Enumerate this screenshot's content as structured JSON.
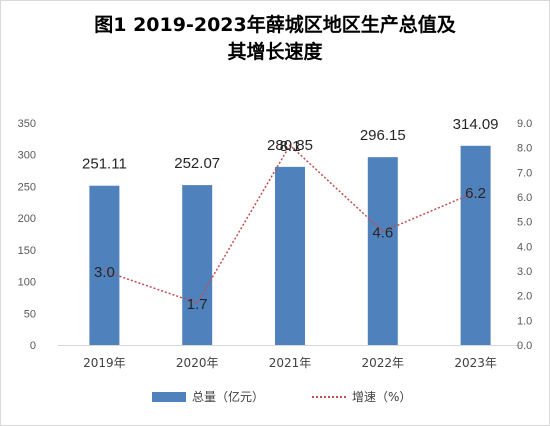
{
  "title": {
    "line1": "图1   2019-2023年薛城区地区生产总值及",
    "line2": "其增长速度"
  },
  "chart_data": {
    "type": "bar",
    "categories": [
      "2019年",
      "2020年",
      "2021年",
      "2022年",
      "2023年"
    ],
    "series": [
      {
        "name": "总量（亿元）",
        "type": "bar",
        "axis": "left",
        "color": "#4f81bd",
        "values": [
          251.11,
          252.07,
          280.85,
          296.15,
          314.09
        ]
      },
      {
        "name": "增速（%）",
        "type": "line",
        "axis": "right",
        "color": "#c0504d",
        "style": "dotted",
        "values": [
          3.0,
          1.7,
          8.1,
          4.6,
          6.2
        ]
      }
    ],
    "data_labels": {
      "bar": [
        "251.11",
        "252.07",
        "280.85",
        "296.15",
        "314.09"
      ],
      "line": [
        "3.0",
        "1.7",
        "8.1",
        "4.6",
        "6.2"
      ]
    },
    "y_left": {
      "min": 0,
      "max": 350,
      "ticks": [
        "0",
        "50",
        "100",
        "150",
        "200",
        "250",
        "300",
        "350"
      ]
    },
    "y_right": {
      "min": 0,
      "max": 9,
      "ticks": [
        "0.0",
        "1.0",
        "2.0",
        "3.0",
        "4.0",
        "5.0",
        "6.0",
        "7.0",
        "8.0",
        "9.0"
      ]
    },
    "grid": false,
    "legend_position": "bottom"
  }
}
